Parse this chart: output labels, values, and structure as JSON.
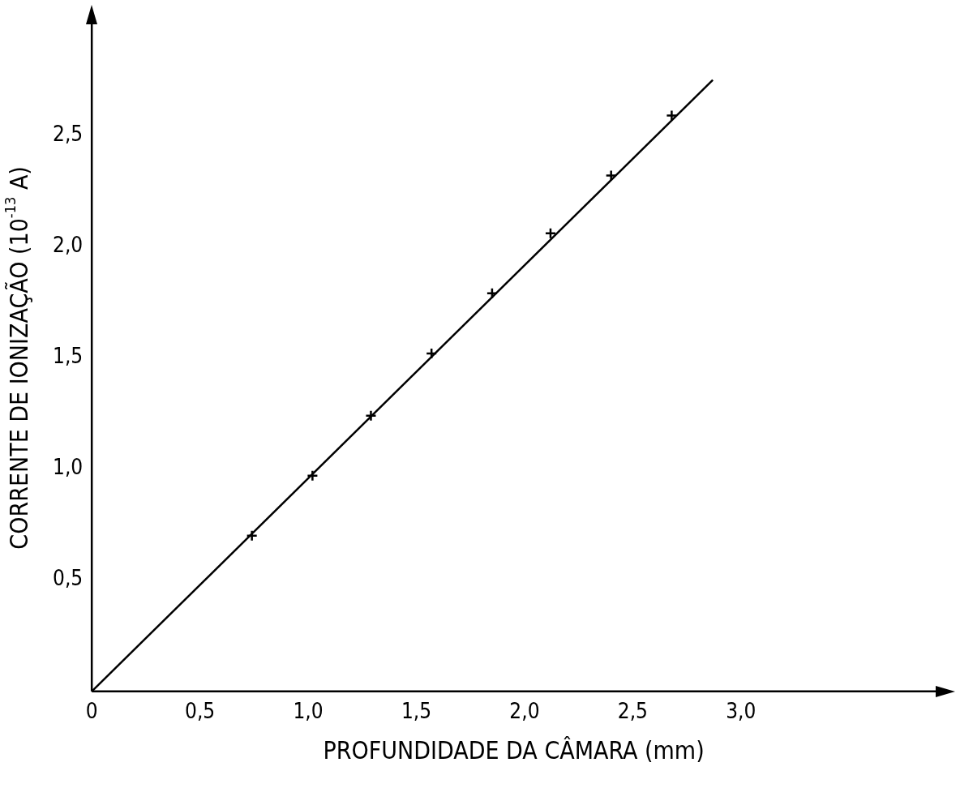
{
  "chart_data": {
    "type": "scatter",
    "xlabel": "PROFUNDIDADE DA CÂMARA (mm)",
    "ylabel": "CORRENTE DE IONIZAÇÃO (10$^{-13}$ A)",
    "series": [
      {
        "type": "line",
        "color": "#000000",
        "marker": "none",
        "x": [
          0,
          2.87
        ],
        "values": [
          0,
          2.75
        ]
      },
      {
        "type": "scatter",
        "color": "#000000",
        "marker": "cross",
        "x": [
          0.74,
          1.02,
          1.29,
          1.57,
          1.85,
          2.12,
          2.4,
          2.68
        ],
        "values": [
          0.7,
          0.97,
          1.24,
          1.52,
          1.79,
          2.06,
          2.32,
          2.59
        ]
      }
    ],
    "xlim": [
      0,
      3.9
    ],
    "ylim": [
      0,
      3.0
    ],
    "xticks": [
      {
        "value": 0,
        "label": "0"
      },
      {
        "value": 0.5,
        "label": "0,5"
      },
      {
        "value": 1,
        "label": "1,0"
      },
      {
        "value": 1.5,
        "label": "1,5"
      },
      {
        "value": 2,
        "label": "2,0"
      },
      {
        "value": 2.5,
        "label": "2,5"
      },
      {
        "value": 3,
        "label": "3,0"
      }
    ],
    "yticks": [
      {
        "value": 0.5,
        "label": "0,5"
      },
      {
        "value": 1,
        "label": "1,0"
      },
      {
        "value": 1.5,
        "label": "1,5"
      },
      {
        "value": 2,
        "label": "2,0"
      },
      {
        "value": 2.5,
        "label": "2,5"
      }
    ],
    "grid": false,
    "legend": false
  }
}
